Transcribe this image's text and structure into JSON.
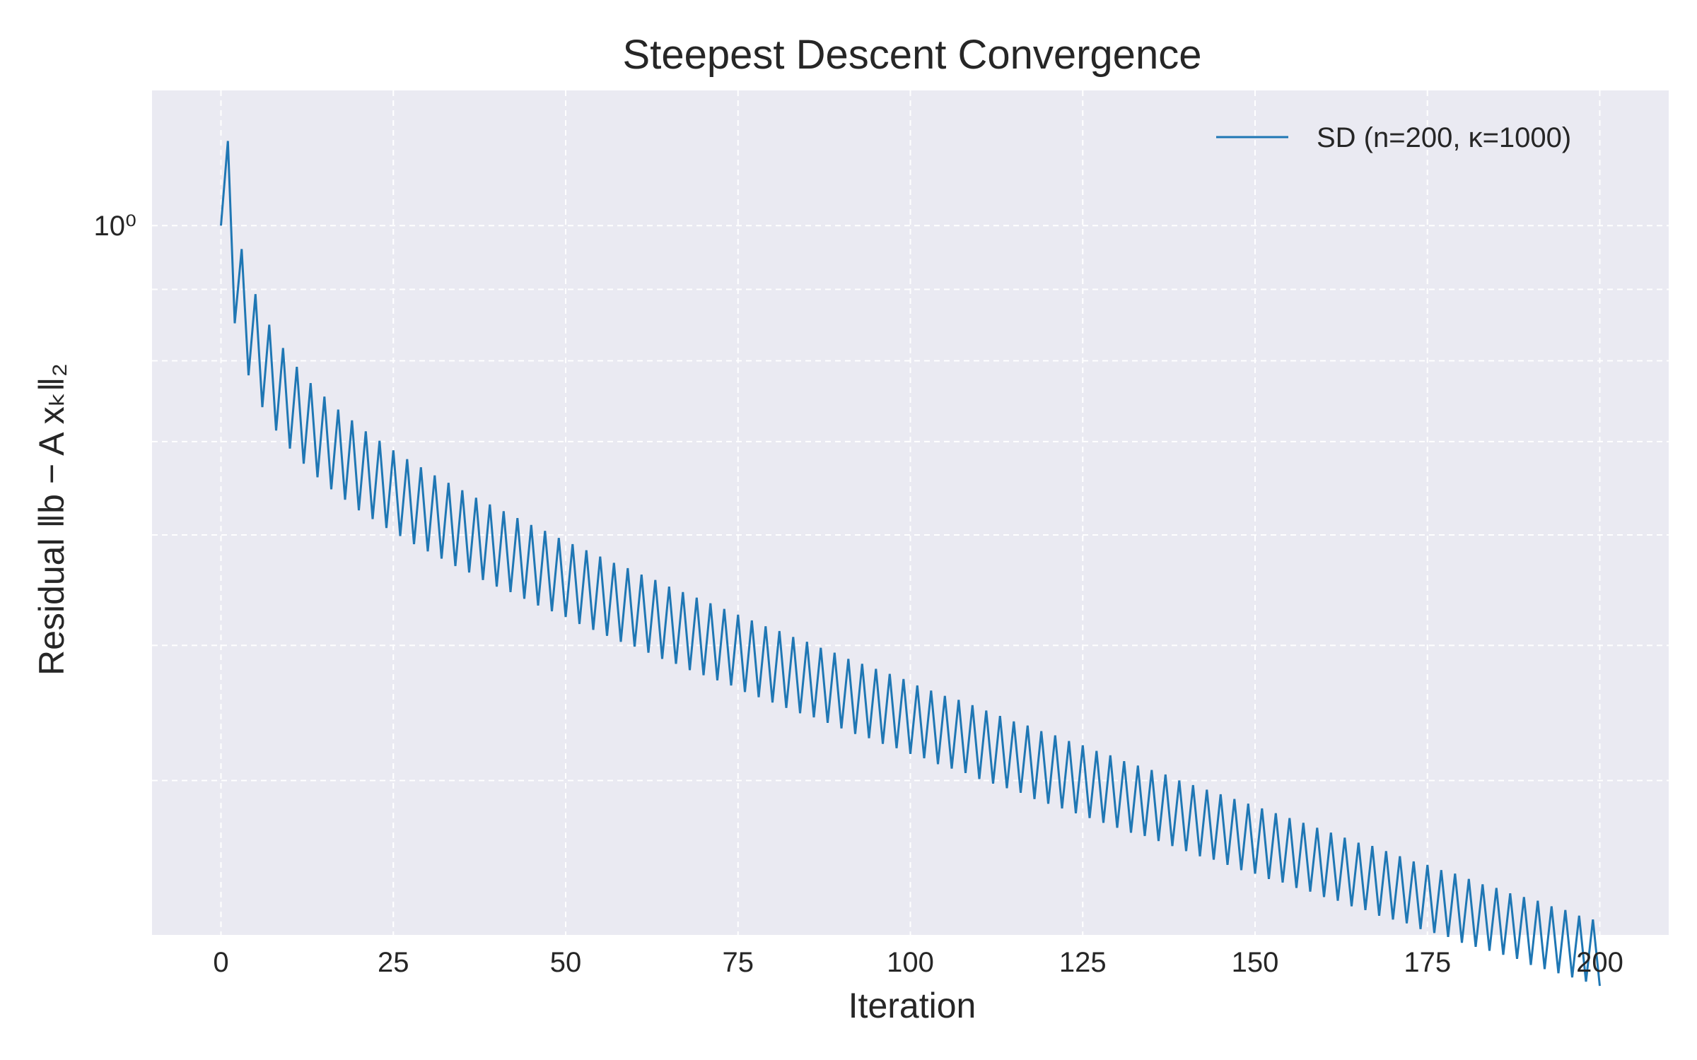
{
  "chart_data": {
    "type": "line",
    "title": "Steepest Descent Convergence",
    "xlabel": "Iteration",
    "ylabel": "Residual ‖b − A xₖ‖₂",
    "xlim": [
      -10,
      210
    ],
    "ylim": [
      0.31,
      1.25
    ],
    "yscale": "log",
    "grid": true,
    "legend_position": "top-right",
    "background_color": "#eaeaf2",
    "x_ticks": [
      0,
      25,
      50,
      75,
      100,
      125,
      150,
      175,
      200
    ],
    "x_tick_labels": [
      "0",
      "25",
      "50",
      "75",
      "100",
      "125",
      "150",
      "175",
      "200"
    ],
    "y_ticks": [
      1.0
    ],
    "y_tick_labels": [
      "10⁰"
    ],
    "y_minor_ticks": [
      0.4,
      0.5,
      0.6,
      0.7,
      0.8,
      0.9
    ],
    "series": [
      {
        "name": "SD (n=200, κ=1000)",
        "color": "#1f77b4",
        "x": [
          0,
          1,
          2,
          3,
          4,
          5,
          6,
          7,
          8,
          9,
          10,
          11,
          12,
          13,
          14,
          15,
          16,
          17,
          18,
          19,
          20,
          21,
          22,
          23,
          24,
          25,
          26,
          27,
          28,
          29,
          30,
          31,
          32,
          33,
          34,
          35,
          36,
          37,
          38,
          39,
          40,
          41,
          42,
          43,
          44,
          45,
          46,
          47,
          48,
          49,
          50,
          51,
          52,
          53,
          54,
          55,
          56,
          57,
          58,
          59,
          60,
          61,
          62,
          63,
          64,
          65,
          66,
          67,
          68,
          69,
          70,
          71,
          72,
          73,
          74,
          75,
          76,
          77,
          78,
          79,
          80,
          81,
          82,
          83,
          84,
          85,
          86,
          87,
          88,
          89,
          90,
          91,
          92,
          93,
          94,
          95,
          96,
          97,
          98,
          99,
          100,
          101,
          102,
          103,
          104,
          105,
          106,
          107,
          108,
          109,
          110,
          111,
          112,
          113,
          114,
          115,
          116,
          117,
          118,
          119,
          120,
          121,
          122,
          123,
          124,
          125,
          126,
          127,
          128,
          129,
          130,
          131,
          132,
          133,
          134,
          135,
          136,
          137,
          138,
          139,
          140,
          141,
          142,
          143,
          144,
          145,
          146,
          147,
          148,
          149,
          150,
          151,
          152,
          153,
          154,
          155,
          156,
          157,
          158,
          159,
          160,
          161,
          162,
          163,
          164,
          165,
          166,
          167,
          168,
          169,
          170,
          171,
          172,
          173,
          174,
          175,
          176,
          177,
          178,
          179,
          180,
          181,
          182,
          183,
          184,
          185,
          186,
          187,
          188,
          189,
          190,
          191,
          192,
          193,
          194,
          195,
          196,
          197,
          198,
          199,
          200
        ],
        "y": [
          1.0,
          1.15,
          0.851,
          0.962,
          0.781,
          0.893,
          0.741,
          0.849,
          0.713,
          0.817,
          0.692,
          0.792,
          0.675,
          0.771,
          0.66,
          0.754,
          0.647,
          0.738,
          0.636,
          0.725,
          0.625,
          0.712,
          0.616,
          0.701,
          0.607,
          0.69,
          0.599,
          0.68,
          0.591,
          0.671,
          0.584,
          0.662,
          0.577,
          0.654,
          0.57,
          0.646,
          0.564,
          0.638,
          0.557,
          0.631,
          0.551,
          0.624,
          0.546,
          0.617,
          0.54,
          0.61,
          0.534,
          0.604,
          0.529,
          0.597,
          0.524,
          0.591,
          0.518,
          0.585,
          0.513,
          0.579,
          0.508,
          0.573,
          0.503,
          0.568,
          0.499,
          0.562,
          0.494,
          0.557,
          0.489,
          0.551,
          0.485,
          0.546,
          0.48,
          0.541,
          0.476,
          0.536,
          0.472,
          0.531,
          0.468,
          0.526,
          0.463,
          0.521,
          0.459,
          0.516,
          0.455,
          0.512,
          0.451,
          0.507,
          0.447,
          0.503,
          0.444,
          0.498,
          0.44,
          0.494,
          0.436,
          0.489,
          0.432,
          0.485,
          0.429,
          0.481,
          0.425,
          0.477,
          0.422,
          0.473,
          0.418,
          0.468,
          0.415,
          0.464,
          0.411,
          0.46,
          0.408,
          0.457,
          0.405,
          0.453,
          0.401,
          0.449,
          0.398,
          0.445,
          0.395,
          0.441,
          0.392,
          0.438,
          0.388,
          0.434,
          0.385,
          0.431,
          0.382,
          0.427,
          0.379,
          0.424,
          0.376,
          0.42,
          0.373,
          0.417,
          0.37,
          0.413,
          0.367,
          0.41,
          0.365,
          0.407,
          0.362,
          0.404,
          0.359,
          0.4,
          0.356,
          0.397,
          0.353,
          0.394,
          0.351,
          0.391,
          0.348,
          0.388,
          0.345,
          0.385,
          0.343,
          0.382,
          0.34,
          0.379,
          0.338,
          0.376,
          0.335,
          0.373,
          0.333,
          0.37,
          0.33,
          0.367,
          0.328,
          0.364,
          0.325,
          0.361,
          0.323,
          0.359,
          0.32,
          0.356,
          0.318,
          0.353,
          0.316,
          0.35,
          0.313,
          0.348,
          0.311,
          0.345,
          0.309,
          0.343,
          0.306,
          0.34,
          0.304,
          0.337,
          0.302,
          0.335,
          0.3,
          0.332,
          0.298,
          0.33,
          0.295,
          0.328,
          0.293,
          0.325,
          0.291,
          0.323,
          0.289,
          0.32,
          0.287,
          0.318,
          0.285
        ]
      }
    ]
  }
}
